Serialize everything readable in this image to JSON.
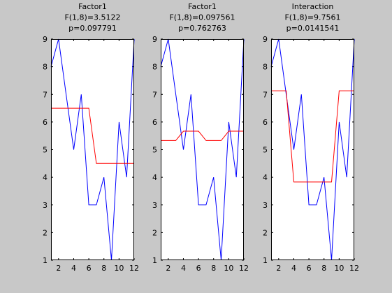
{
  "chart_data": [
    {
      "type": "line",
      "title": [
        "Factor1",
        "F(1,8)=3.5122",
        "p=0.097791"
      ],
      "xlabel": "",
      "ylabel": "",
      "xlim": [
        1,
        12
      ],
      "ylim": [
        1,
        9
      ],
      "xticks": [
        2,
        4,
        6,
        8,
        10,
        12
      ],
      "yticks": [
        1,
        2,
        3,
        4,
        5,
        6,
        7,
        8,
        9
      ],
      "grid": false,
      "series": [
        {
          "color": "#0000ff",
          "x": [
            1,
            2,
            3,
            4,
            5,
            6,
            7,
            8,
            9,
            10,
            11,
            12
          ],
          "y": [
            8,
            9,
            7,
            5,
            7,
            3,
            3,
            4,
            1,
            6,
            4,
            9
          ]
        },
        {
          "color": "#ff0000",
          "x": [
            1,
            2,
            3,
            4,
            5,
            6,
            7,
            8,
            9,
            10,
            11,
            12
          ],
          "y": [
            6.5,
            6.5,
            6.5,
            6.5,
            6.5,
            6.5,
            4.5,
            4.5,
            4.5,
            4.5,
            4.5,
            4.5
          ]
        }
      ]
    },
    {
      "type": "line",
      "title": [
        "Factor1",
        "F(1,8)=0.097561",
        "p=0.762763"
      ],
      "xlabel": "",
      "ylabel": "",
      "xlim": [
        1,
        12
      ],
      "ylim": [
        1,
        9
      ],
      "xticks": [
        2,
        4,
        6,
        8,
        10,
        12
      ],
      "yticks": [
        1,
        2,
        3,
        4,
        5,
        6,
        7,
        8,
        9
      ],
      "grid": false,
      "series": [
        {
          "color": "#0000ff",
          "x": [
            1,
            2,
            3,
            4,
            5,
            6,
            7,
            8,
            9,
            10,
            11,
            12
          ],
          "y": [
            8,
            9,
            7,
            5,
            7,
            3,
            3,
            4,
            1,
            6,
            4,
            9
          ]
        },
        {
          "color": "#ff0000",
          "x": [
            1,
            2,
            3,
            4,
            5,
            6,
            7,
            8,
            9,
            10,
            11,
            12
          ],
          "y": [
            5.33,
            5.33,
            5.33,
            5.67,
            5.67,
            5.67,
            5.33,
            5.33,
            5.33,
            5.67,
            5.67,
            5.67
          ]
        }
      ]
    },
    {
      "type": "line",
      "title": [
        "Interaction",
        "F(1,8)=9.7561",
        "p=0.0141541"
      ],
      "xlabel": "",
      "ylabel": "",
      "xlim": [
        1,
        12
      ],
      "ylim": [
        1,
        9
      ],
      "xticks": [
        2,
        4,
        6,
        8,
        10,
        12
      ],
      "yticks": [
        1,
        2,
        3,
        4,
        5,
        6,
        7,
        8,
        9
      ],
      "grid": false,
      "series": [
        {
          "color": "#0000ff",
          "x": [
            1,
            2,
            3,
            4,
            5,
            6,
            7,
            8,
            9,
            10,
            11,
            12
          ],
          "y": [
            8,
            9,
            7,
            5,
            7,
            3,
            3,
            4,
            1,
            6,
            4,
            9
          ]
        },
        {
          "color": "#ff0000",
          "x": [
            1,
            2,
            3,
            4,
            5,
            6,
            7,
            8,
            9,
            10,
            11,
            12
          ],
          "y": [
            7.13,
            7.13,
            7.13,
            3.83,
            3.83,
            3.83,
            3.83,
            3.83,
            3.83,
            7.13,
            7.13,
            7.13
          ]
        }
      ]
    }
  ]
}
